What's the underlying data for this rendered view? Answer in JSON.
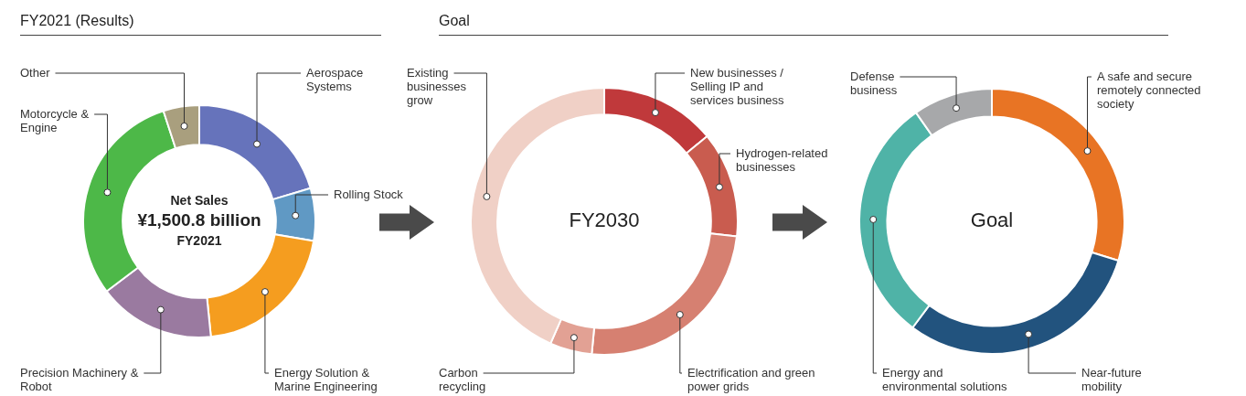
{
  "chart_data": [
    {
      "type": "donut",
      "title": "FY2021 (Results)",
      "categories": [
        "Aerospace Systems",
        "Rolling Stock",
        "Energy Solution & Marine Engineering",
        "Precision Machinery & Robot",
        "Motorcycle & Engine",
        "Other"
      ],
      "values": [
        20.4,
        7.3,
        20.7,
        16.3,
        30.3,
        5
      ],
      "colors": [
        "#6673bb",
        "#6099c4",
        "#f59d1f",
        "#9a7aa0",
        "#4db848",
        "#a99f7e"
      ],
      "annotations": [
        "Net Sales",
        "¥1,500.8 billion",
        "FY2021"
      ]
    },
    {
      "type": "donut",
      "title": "Goal",
      "categories": [
        "New businesses / Selling IP and services business",
        "Hydrogen-related businesses",
        "Electrification and green power grids",
        "Carbon recycling",
        "Existing businesses grow"
      ],
      "values": [
        14,
        12.8,
        24.7,
        5.1,
        43.4
      ],
      "colors": [
        "#c0393b",
        "#c95c4f",
        "#d68071",
        "#e2a194",
        "#f0d0c6"
      ],
      "annotations": [
        "FY2030"
      ]
    },
    {
      "type": "donut",
      "categories": [
        "A safe and secure remotely connected society",
        "Near-future mobility",
        "Energy and environmental solutions",
        "Defense business"
      ],
      "values": [
        29.8,
        30.4,
        30.1,
        9.7
      ],
      "colors": [
        "#e87424",
        "#22537e",
        "#4fb3a7",
        "#a7a8aa"
      ],
      "annotations": [
        "Goal"
      ]
    }
  ]
}
